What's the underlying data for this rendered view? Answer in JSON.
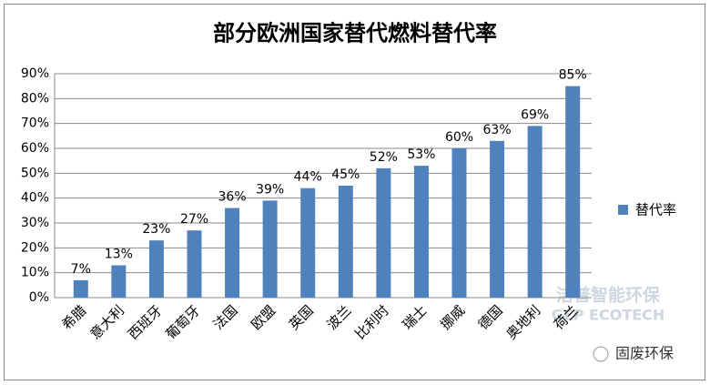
{
  "chart_data": {
    "type": "bar",
    "title": "部分欧洲国家替代燃料替代率",
    "categories": [
      "希腊",
      "意大利",
      "西班牙",
      "葡萄牙",
      "法国",
      "欧盟",
      "英国",
      "波兰",
      "比利时",
      "瑞士",
      "挪威",
      "德国",
      "奥地利",
      "荷兰"
    ],
    "series": [
      {
        "name": "替代率",
        "color": "#4f81bd",
        "values": [
          7,
          13,
          23,
          27,
          36,
          39,
          44,
          45,
          52,
          53,
          60,
          63,
          69,
          85
        ],
        "value_labels": [
          "7%",
          "13%",
          "23%",
          "27%",
          "36%",
          "39%",
          "44%",
          "45%",
          "52%",
          "53%",
          "60%",
          "63%",
          "69%",
          "85%"
        ]
      }
    ],
    "ylim": [
      0,
      90
    ],
    "yticks": [
      {
        "value": 0,
        "label": "0%"
      },
      {
        "value": 10,
        "label": "10%"
      },
      {
        "value": 20,
        "label": "20%"
      },
      {
        "value": 30,
        "label": "30%"
      },
      {
        "value": 40,
        "label": "40%"
      },
      {
        "value": 50,
        "label": "50%"
      },
      {
        "value": 60,
        "label": "60%"
      },
      {
        "value": 70,
        "label": "70%"
      },
      {
        "value": 80,
        "label": "80%"
      },
      {
        "value": 90,
        "label": "90%"
      }
    ],
    "grid": true,
    "legend": "right"
  },
  "watermark": [
    "洁普智能环保",
    "GEP ECOTECH",
    "固废环保"
  ]
}
